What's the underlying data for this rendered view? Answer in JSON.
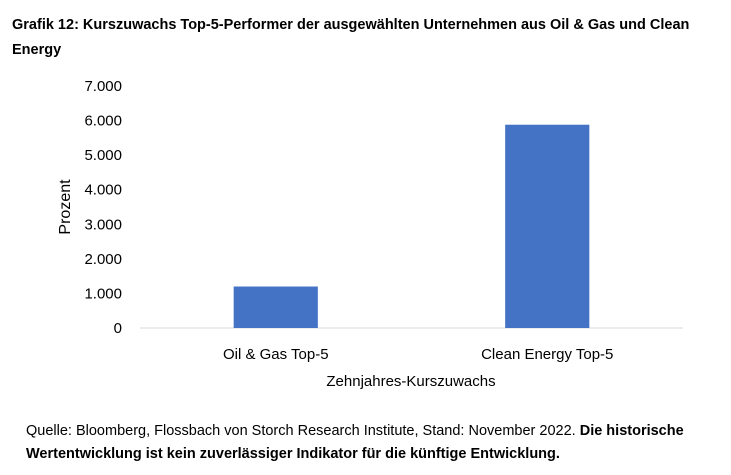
{
  "chart_data": {
    "type": "bar",
    "title": "Grafik 12: Kurszuwachs Top-5-Performer der ausgewählten Unternehmen aus Oil & Gas und Clean Energy",
    "categories": [
      "Oil & Gas Top-5",
      "Clean Energy Top-5"
    ],
    "values": [
      1200,
      5880
    ],
    "xlabel": "Zehnjahres-Kurszuwachs",
    "ylabel": "Prozent",
    "ylim": [
      0,
      7000
    ],
    "yticks": [
      "0",
      "1.000",
      "2.000",
      "3.000",
      "4.000",
      "5.000",
      "6.000",
      "7.000"
    ],
    "bar_color": "#4472C4",
    "grid": false,
    "legend": "none"
  },
  "footer": {
    "source_text": "Quelle: Bloomberg, Flossbach von Storch Research Institute, Stand: November 2022. ",
    "disclaimer": "Die historische Wertentwicklung ist kein zuverlässiger Indikator für die künftige Entwicklung."
  }
}
